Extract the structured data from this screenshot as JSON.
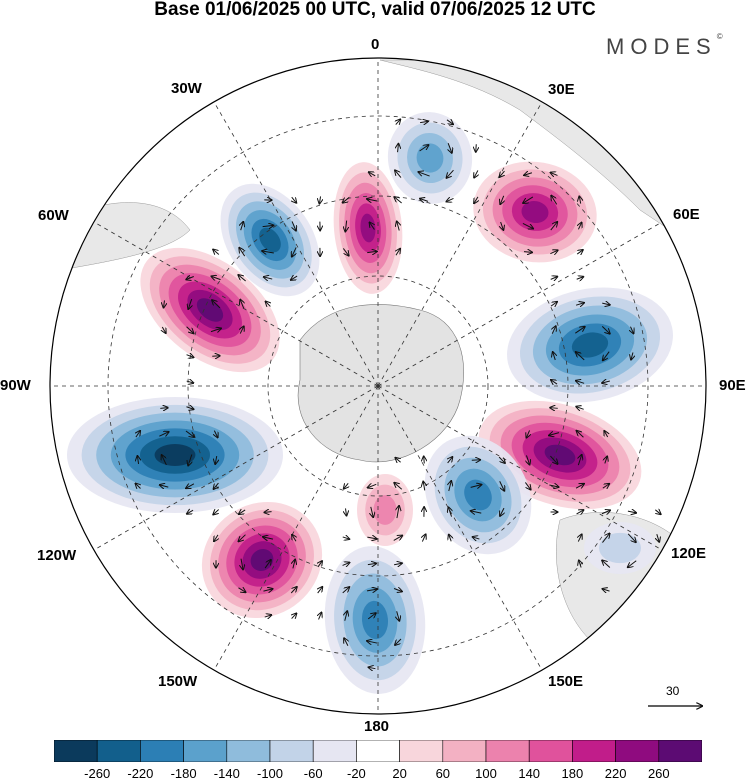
{
  "title": "Base 01/06/2025 00 UTC, valid 07/06/2025 12 UTC",
  "brand": {
    "name": "MODES",
    "mark": "©"
  },
  "longitude_labels": {
    "lon_0": "0",
    "lon_30e": "30E",
    "lon_60e": "60E",
    "lon_90e": "90E",
    "lon_120e": "120E",
    "lon_150e": "150E",
    "lon_180": "180",
    "lon_150w": "150W",
    "lon_120w": "120W",
    "lon_90w": "90W",
    "lon_60w": "60W",
    "lon_30w": "30W"
  },
  "vector_scale": {
    "value": "30"
  },
  "colorbar": {
    "labels": [
      "-260",
      "-220",
      "-180",
      "-140",
      "-100",
      "-60",
      "-20",
      "20",
      "60",
      "100",
      "140",
      "180",
      "220",
      "260"
    ],
    "colors": [
      "#0b3a5c",
      "#125f8c",
      "#2c7fb5",
      "#5ba1cc",
      "#8fbcdc",
      "#c2d3e8",
      "#e6e6f2",
      "#ffffff",
      "#f8d6dc",
      "#f3b1c3",
      "#ec82ad",
      "#e0529c",
      "#c11d8a",
      "#8f0b7f",
      "#5c0b73"
    ]
  },
  "anomaly_centers": [
    {
      "sign": "positive",
      "level": 260
    },
    {
      "sign": "negative",
      "level": -240
    },
    {
      "sign": "positive",
      "level": 220
    },
    {
      "sign": "negative",
      "level": -140
    },
    {
      "sign": "positive",
      "level": 220
    },
    {
      "sign": "negative",
      "level": -240
    },
    {
      "sign": "positive",
      "level": 260
    },
    {
      "sign": "negative",
      "level": -200
    },
    {
      "sign": "negative",
      "level": -200
    },
    {
      "sign": "positive",
      "level": 260
    },
    {
      "sign": "negative",
      "level": -260
    },
    {
      "sign": "positive",
      "level": 100
    },
    {
      "sign": "negative",
      "level": -60
    }
  ]
}
